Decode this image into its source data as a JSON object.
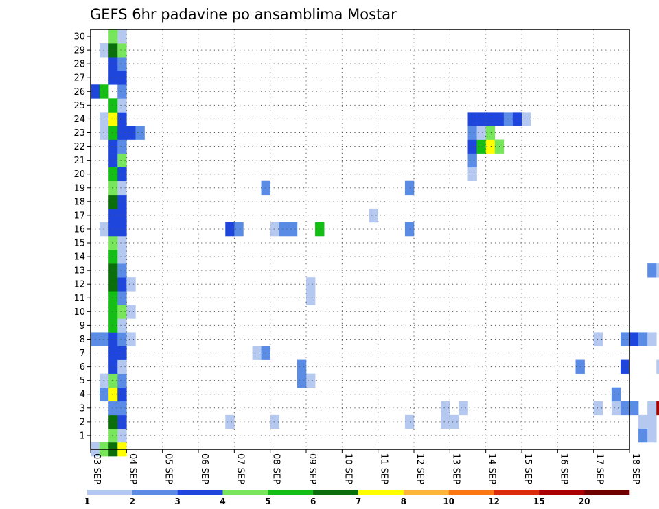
{
  "chart_data": {
    "type": "heatmap",
    "title": "GEFS 6hr padavine po ansamblima Mostar",
    "xlabel": "",
    "ylabel": "",
    "x_ticks": [
      "03 SEP",
      "04 SEP",
      "05 SEP",
      "06 SEP",
      "07 SEP",
      "08 SEP",
      "09 SEP",
      "10 SEP",
      "11 SEP",
      "12 SEP",
      "13 SEP",
      "14 SEP",
      "15 SEP",
      "16 SEP",
      "17 SEP",
      "18 SEP"
    ],
    "x_steps_per_day": 4,
    "y_ticks": [
      1,
      2,
      3,
      4,
      5,
      6,
      7,
      8,
      9,
      10,
      11,
      12,
      13,
      14,
      15,
      16,
      17,
      18,
      19,
      20,
      21,
      22,
      23,
      24,
      25,
      26,
      27,
      28,
      29,
      30
    ],
    "y_range": [
      0,
      30
    ],
    "grid": true,
    "colorbar": {
      "labels": [
        "1",
        "2",
        "3",
        "4",
        "5",
        "6",
        "7",
        "8",
        "10",
        "12",
        "15",
        "20"
      ],
      "colors": [
        "#b4c8f0",
        "#5a8ce6",
        "#1e46dc",
        "#78e65a",
        "#14be14",
        "#0a6e0a",
        "#ffff00",
        "#ffb43c",
        "#fa7814",
        "#dc2d0a",
        "#aa0000",
        "#6e0000"
      ]
    },
    "cells": [
      [
        0,
        0,
        1
      ],
      [
        1,
        0,
        4
      ],
      [
        2,
        0,
        6
      ],
      [
        3,
        0,
        7
      ],
      [
        2,
        1,
        4
      ],
      [
        3,
        1,
        1
      ],
      [
        2,
        2,
        6
      ],
      [
        3,
        2,
        3
      ],
      [
        2,
        3,
        2
      ],
      [
        3,
        3,
        2
      ],
      [
        1,
        4,
        2
      ],
      [
        2,
        4,
        7
      ],
      [
        3,
        4,
        3
      ],
      [
        1,
        5,
        1
      ],
      [
        2,
        5,
        4
      ],
      [
        3,
        5,
        2
      ],
      [
        2,
        6,
        3
      ],
      [
        3,
        6,
        1
      ],
      [
        2,
        7,
        3
      ],
      [
        3,
        7,
        3
      ],
      [
        0,
        8,
        2
      ],
      [
        1,
        8,
        2
      ],
      [
        2,
        8,
        3
      ],
      [
        3,
        8,
        2
      ],
      [
        4,
        8,
        1
      ],
      [
        2,
        9,
        5
      ],
      [
        3,
        9,
        1
      ],
      [
        2,
        10,
        5
      ],
      [
        3,
        10,
        4
      ],
      [
        4,
        10,
        1
      ],
      [
        2,
        11,
        5
      ],
      [
        3,
        11,
        2
      ],
      [
        2,
        12,
        6
      ],
      [
        3,
        12,
        3
      ],
      [
        4,
        12,
        1
      ],
      [
        2,
        13,
        6
      ],
      [
        3,
        13,
        2
      ],
      [
        2,
        14,
        5
      ],
      [
        3,
        14,
        1
      ],
      [
        2,
        15,
        4
      ],
      [
        3,
        15,
        1
      ],
      [
        1,
        16,
        1
      ],
      [
        2,
        16,
        3
      ],
      [
        3,
        16,
        3
      ],
      [
        2,
        17,
        3
      ],
      [
        3,
        17,
        3
      ],
      [
        2,
        18,
        6
      ],
      [
        3,
        18,
        3
      ],
      [
        2,
        19,
        4
      ],
      [
        3,
        19,
        1
      ],
      [
        2,
        20,
        5
      ],
      [
        3,
        20,
        3
      ],
      [
        2,
        21,
        3
      ],
      [
        3,
        21,
        4
      ],
      [
        2,
        22,
        3
      ],
      [
        3,
        22,
        2
      ],
      [
        1,
        23,
        1
      ],
      [
        2,
        23,
        5
      ],
      [
        3,
        23,
        3
      ],
      [
        4,
        23,
        3
      ],
      [
        5,
        23,
        2
      ],
      [
        1,
        24,
        1
      ],
      [
        2,
        24,
        7
      ],
      [
        3,
        24,
        3
      ],
      [
        2,
        25,
        5
      ],
      [
        3,
        25,
        1
      ],
      [
        0,
        26,
        3
      ],
      [
        1,
        26,
        5
      ],
      [
        3,
        26,
        2
      ],
      [
        2,
        27,
        3
      ],
      [
        3,
        27,
        3
      ],
      [
        2,
        28,
        3
      ],
      [
        3,
        28,
        2
      ],
      [
        1,
        29,
        1
      ],
      [
        2,
        29,
        6
      ],
      [
        3,
        29,
        4
      ],
      [
        2,
        30,
        4
      ],
      [
        3,
        30,
        1
      ],
      [
        31,
        17,
        1
      ],
      [
        15,
        2,
        1
      ],
      [
        20,
        2,
        1
      ],
      [
        35,
        2,
        1
      ],
      [
        39,
        2,
        1
      ],
      [
        40,
        2,
        1
      ],
      [
        39,
        3,
        1
      ],
      [
        41,
        3,
        1
      ],
      [
        24,
        5,
        1
      ],
      [
        23,
        5,
        2
      ],
      [
        23,
        6,
        2
      ],
      [
        18,
        7,
        1
      ],
      [
        19,
        7,
        2
      ],
      [
        24,
        11,
        1
      ],
      [
        24,
        12,
        1
      ],
      [
        15,
        16,
        3
      ],
      [
        16,
        16,
        2
      ],
      [
        20,
        16,
        1
      ],
      [
        21,
        16,
        2
      ],
      [
        22,
        16,
        2
      ],
      [
        25,
        16,
        5
      ],
      [
        35,
        16,
        2
      ],
      [
        35,
        19,
        2
      ],
      [
        19,
        19,
        2
      ],
      [
        42,
        20,
        1
      ],
      [
        42,
        21,
        2
      ],
      [
        42,
        22,
        3
      ],
      [
        43,
        22,
        5
      ],
      [
        44,
        22,
        7
      ],
      [
        45,
        22,
        4
      ],
      [
        42,
        23,
        2
      ],
      [
        43,
        23,
        1
      ],
      [
        44,
        23,
        4
      ],
      [
        42,
        24,
        3
      ],
      [
        43,
        24,
        3
      ],
      [
        44,
        24,
        3
      ],
      [
        45,
        24,
        3
      ],
      [
        46,
        24,
        2
      ],
      [
        47,
        24,
        3
      ],
      [
        48,
        24,
        1
      ],
      [
        61,
        1,
        2
      ],
      [
        62,
        1,
        1
      ],
      [
        66,
        1,
        2
      ],
      [
        81,
        1,
        6
      ],
      [
        82,
        1,
        8
      ],
      [
        83,
        1,
        10
      ],
      [
        85,
        1,
        11
      ],
      [
        86,
        1,
        12
      ],
      [
        87,
        1,
        10
      ],
      [
        88,
        1,
        11
      ],
      [
        89,
        1,
        3
      ],
      [
        90,
        1,
        3
      ],
      [
        91,
        1,
        2
      ],
      [
        56,
        3,
        1
      ],
      [
        58,
        3,
        1
      ],
      [
        59,
        3,
        2
      ],
      [
        60,
        3,
        2
      ],
      [
        62,
        3,
        1
      ],
      [
        63,
        3,
        11
      ],
      [
        61,
        2,
        1
      ],
      [
        62,
        2,
        1
      ],
      [
        58,
        4,
        2
      ],
      [
        66,
        4,
        1
      ],
      [
        85,
        5,
        3
      ],
      [
        88,
        5,
        3
      ],
      [
        91,
        5,
        2
      ],
      [
        93,
        5,
        4
      ],
      [
        95,
        5,
        1
      ],
      [
        54,
        6,
        2
      ],
      [
        59,
        6,
        3
      ],
      [
        63,
        6,
        1
      ],
      [
        64,
        6,
        10
      ],
      [
        56,
        8,
        1
      ],
      [
        59,
        8,
        2
      ],
      [
        60,
        8,
        3
      ],
      [
        61,
        8,
        2
      ],
      [
        62,
        8,
        1
      ],
      [
        85,
        11,
        2
      ],
      [
        85,
        12,
        5
      ],
      [
        86,
        12,
        4
      ],
      [
        88,
        12,
        2
      ],
      [
        91,
        12,
        1
      ],
      [
        62,
        13,
        2
      ],
      [
        63,
        13,
        1
      ],
      [
        64,
        13,
        1
      ],
      [
        65,
        13,
        1
      ],
      [
        66,
        14,
        1
      ],
      [
        67,
        14,
        1
      ],
      [
        68,
        14,
        1
      ],
      [
        69,
        14,
        3
      ],
      [
        70,
        14,
        2
      ],
      [
        69,
        15,
        4
      ],
      [
        70,
        15,
        3
      ],
      [
        71,
        15,
        2
      ],
      [
        72,
        15,
        4
      ],
      [
        73,
        15,
        2
      ],
      [
        74,
        15,
        4
      ],
      [
        75,
        15,
        2
      ],
      [
        76,
        15,
        3
      ],
      [
        77,
        15,
        1
      ],
      [
        73,
        16,
        2
      ],
      [
        74,
        16,
        2
      ],
      [
        76,
        16,
        1
      ],
      [
        77,
        16,
        1
      ],
      [
        78,
        16,
        2
      ],
      [
        72,
        17,
        2
      ],
      [
        73,
        17,
        2
      ],
      [
        74,
        17,
        2
      ],
      [
        75,
        17,
        2
      ],
      [
        76,
        17,
        3
      ],
      [
        77,
        17,
        1
      ],
      [
        78,
        17,
        2
      ],
      [
        70,
        18,
        2
      ],
      [
        71,
        18,
        2
      ],
      [
        72,
        18,
        2
      ],
      [
        73,
        18,
        2
      ],
      [
        75,
        18,
        3
      ],
      [
        76,
        18,
        3
      ],
      [
        77,
        18,
        2
      ],
      [
        78,
        18,
        2
      ],
      [
        77,
        19,
        4
      ],
      [
        78,
        19,
        2
      ],
      [
        79,
        19,
        5
      ],
      [
        80,
        19,
        7
      ],
      [
        81,
        19,
        11
      ],
      [
        82,
        19,
        4
      ],
      [
        83,
        19,
        2
      ],
      [
        84,
        19,
        1
      ],
      [
        77,
        20,
        1
      ],
      [
        78,
        20,
        2
      ],
      [
        79,
        20,
        3
      ],
      [
        80,
        20,
        2
      ],
      [
        81,
        20,
        2
      ],
      [
        77,
        21,
        1
      ],
      [
        78,
        21,
        2
      ],
      [
        79,
        21,
        2
      ],
      [
        80,
        21,
        2
      ],
      [
        81,
        21,
        2
      ],
      [
        82,
        21,
        1
      ],
      [
        71,
        22,
        2
      ],
      [
        72,
        22,
        4
      ],
      [
        73,
        22,
        5
      ],
      [
        74,
        22,
        3
      ],
      [
        75,
        22,
        2
      ],
      [
        76,
        22,
        3
      ],
      [
        77,
        22,
        2
      ],
      [
        78,
        22,
        1
      ],
      [
        79,
        22,
        1
      ],
      [
        72,
        23,
        2
      ],
      [
        73,
        23,
        1
      ],
      [
        74,
        23,
        1
      ],
      [
        75,
        23,
        3
      ],
      [
        76,
        23,
        1
      ],
      [
        77,
        23,
        3
      ],
      [
        78,
        23,
        3
      ],
      [
        70,
        24,
        1
      ],
      [
        71,
        24,
        1
      ],
      [
        72,
        24,
        2
      ],
      [
        73,
        24,
        2
      ],
      [
        74,
        24,
        2
      ],
      [
        75,
        24,
        2
      ],
      [
        71,
        25,
        1
      ],
      [
        72,
        25,
        1
      ],
      [
        73,
        25,
        2
      ],
      [
        74,
        25,
        4
      ],
      [
        75,
        25,
        3
      ],
      [
        77,
        26,
        3
      ],
      [
        78,
        26,
        3
      ],
      [
        79,
        26,
        2
      ],
      [
        78,
        27,
        2
      ],
      [
        79,
        27,
        2
      ],
      [
        80,
        27,
        1
      ],
      [
        81,
        27,
        1
      ],
      [
        78,
        28,
        4
      ],
      [
        79,
        28,
        2
      ],
      [
        80,
        28,
        3
      ],
      [
        81,
        28,
        2
      ],
      [
        76,
        29,
        1
      ],
      [
        77,
        29,
        2
      ],
      [
        78,
        29,
        2
      ],
      [
        79,
        29,
        4
      ],
      [
        80,
        29,
        10
      ],
      [
        80,
        30,
        3
      ],
      [
        81,
        30,
        2
      ],
      [
        82,
        30,
        1
      ],
      [
        83,
        30,
        1
      ],
      [
        84,
        30,
        2
      ]
    ]
  }
}
